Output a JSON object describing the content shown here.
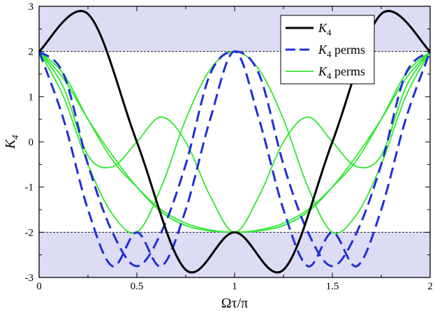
{
  "chart_data": {
    "type": "line",
    "xlabel": "Ωτ/π",
    "ylabel": {
      "main": "K",
      "sub": "4"
    },
    "xlim": [
      0,
      2
    ],
    "ylim": [
      -3,
      3
    ],
    "x_ticks": [
      0,
      0.5,
      1,
      1.5,
      2
    ],
    "x_tick_labels": [
      "0",
      "0.5",
      "1",
      "1.5",
      "2"
    ],
    "y_ticks": [
      -3,
      -2,
      -1,
      0,
      1,
      2,
      3
    ],
    "y_tick_labels": [
      "-3",
      "-2",
      "-1",
      "0",
      "1",
      "2",
      "3"
    ],
    "shaded_bands": [
      {
        "y_from": 2,
        "y_to": 3,
        "color": "#dcdcf5"
      },
      {
        "y_from": -3,
        "y_to": -2,
        "color": "#dcdcf5"
      }
    ],
    "reference_lines": [
      {
        "y": 2
      },
      {
        "y": -2
      }
    ],
    "legend": {
      "placement": "top-right",
      "entries": [
        {
          "main": "K",
          "sub": "4",
          "suffix": "",
          "color": "#000000",
          "dash": "solid"
        },
        {
          "main": "K",
          "sub": "4",
          "suffix": " perms",
          "color": "#1f2fd6",
          "dash": "dashed"
        },
        {
          "main": "K",
          "sub": "4",
          "suffix": " perms",
          "color": "#2ee82e",
          "dash": "solid"
        }
      ]
    },
    "series": [
      {
        "legend": 0,
        "color": "#000000",
        "dash": "solid",
        "x": [
          0,
          0.25,
          0.5,
          0.75,
          1,
          1.25,
          1.5,
          1.75,
          2
        ],
        "y": [
          2,
          2.83,
          0,
          -2.83,
          -2,
          -2.83,
          0,
          2.83,
          2
        ]
      },
      {
        "legend": 1,
        "color": "#1f2fd6",
        "dash": "dashed",
        "x": [
          0,
          0.125,
          0.25,
          0.375,
          0.5,
          0.625,
          0.75,
          0.875,
          1,
          1.125,
          1.25,
          1.375,
          1.5,
          1.625,
          1.75,
          1.875,
          2
        ],
        "y": [
          2,
          0.5,
          -1.5,
          -2.75,
          -2,
          -2.75,
          -1.5,
          0.5,
          2,
          0.5,
          -1.5,
          -2.75,
          -2,
          -2.75,
          -1.5,
          0.5,
          2
        ]
      },
      {
        "legend": 1,
        "color": "#1f2fd6",
        "dash": "dashed",
        "x": [
          0,
          0.125,
          0.25,
          0.375,
          0.5,
          0.625,
          0.75,
          0.875,
          1,
          1.125,
          1.25,
          1.375,
          1.5,
          1.625,
          1.75,
          1.875,
          2
        ],
        "y": [
          2,
          1.5,
          -0.5,
          -2.0,
          -2.75,
          -2.0,
          -0.5,
          1.5,
          2,
          1.5,
          -0.5,
          -2.0,
          -2.75,
          -2.0,
          -0.5,
          1.5,
          2
        ]
      },
      {
        "legend": 2,
        "color": "#2ee82e",
        "dash": "solid",
        "x": [
          0,
          0.125,
          0.25,
          0.375,
          0.5,
          0.625,
          0.75,
          0.875,
          1,
          1.125,
          1.25,
          1.375,
          1.5,
          1.625,
          1.75,
          1.875,
          2
        ],
        "y": [
          2,
          1.0,
          -0.5,
          -1.6,
          -2.0,
          -1.0,
          0.5,
          1.6,
          2,
          1.6,
          0.5,
          -1.0,
          -2.0,
          -1.6,
          -0.5,
          1.0,
          2
        ]
      },
      {
        "legend": 2,
        "color": "#2ee82e",
        "dash": "solid",
        "x": [
          0,
          0.125,
          0.25,
          0.375,
          0.5,
          0.625,
          0.75,
          0.875,
          1,
          1.125,
          1.25,
          1.375,
          1.5,
          1.625,
          1.75,
          1.875,
          2
        ],
        "y": [
          2,
          1.5,
          0.5,
          -0.4,
          -1.0,
          -1.5,
          -1.8,
          -1.95,
          -2,
          -1.95,
          -1.8,
          -1.5,
          -1.0,
          -0.4,
          0.5,
          1.5,
          2
        ]
      },
      {
        "legend": 2,
        "color": "#2ee82e",
        "dash": "solid",
        "x": [
          0,
          0.125,
          0.25,
          0.375,
          0.5,
          0.625,
          0.75,
          0.875,
          1,
          1.125,
          1.25,
          1.375,
          1.5,
          1.625,
          1.75,
          1.875,
          2
        ],
        "y": [
          2,
          1.2,
          -0.3,
          -0.55,
          0,
          0.55,
          0.0,
          -1.2,
          -2,
          -1.2,
          0.0,
          0.55,
          0,
          -0.55,
          -0.3,
          1.2,
          2
        ]
      },
      {
        "legend": 2,
        "color": "#2ee82e",
        "dash": "solid",
        "x": [
          0,
          0.125,
          0.25,
          0.375,
          0.5,
          0.625,
          0.75,
          0.875,
          1,
          1.125,
          1.25,
          1.375,
          1.5,
          1.625,
          1.75,
          1.875,
          2
        ],
        "y": [
          2,
          1.4,
          0.5,
          -0.3,
          -1.0,
          -1.55,
          -1.85,
          -1.97,
          -2,
          -1.97,
          -1.85,
          -1.55,
          -1.0,
          -0.3,
          0.5,
          1.4,
          2
        ]
      }
    ]
  }
}
